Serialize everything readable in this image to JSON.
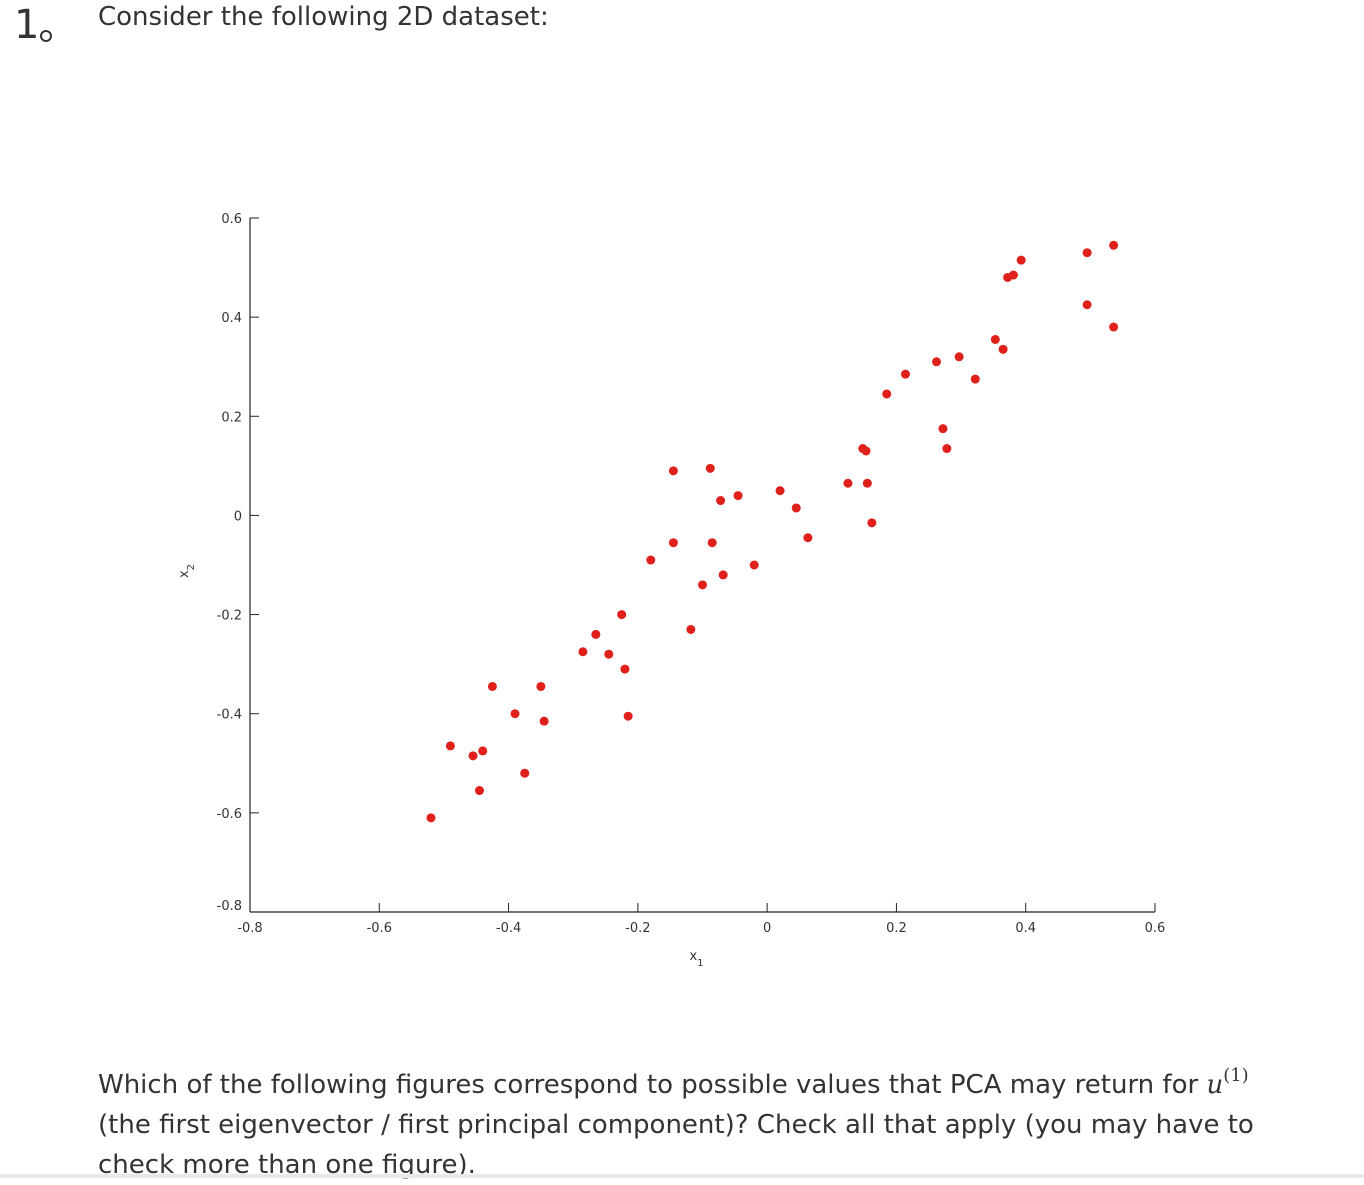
{
  "question": {
    "number": "1",
    "intro": "Consider the following 2D dataset:",
    "prompt_part1": "Which of the following figures correspond to possible values that PCA may return for ",
    "math_var": "u",
    "math_sup": "(1)",
    "prompt_part2": " (the first eigenvector / first principal component)? Check all that apply (you may have to check more than one figure)."
  },
  "chart_data": {
    "type": "scatter",
    "title": "",
    "xlabel": "x1",
    "ylabel": "x2",
    "xlim": [
      -0.8,
      0.6
    ],
    "ylim": [
      -0.8,
      0.6
    ],
    "xticks": [
      -0.8,
      -0.6,
      -0.4,
      -0.2,
      0,
      0.2,
      0.4,
      0.6
    ],
    "yticks": [
      -0.8,
      -0.6,
      -0.4,
      -0.2,
      0,
      0.2,
      0.4,
      0.6
    ],
    "xtick_labels": [
      "-0.8",
      "-0.6",
      "-0.4",
      "-0.2",
      "0",
      "0.2",
      "0.4",
      "0.6"
    ],
    "ytick_labels": [
      "-0.8",
      "-0.6",
      "-0.4",
      "-0.2",
      "0",
      "0.2",
      "0.4",
      "0.6"
    ],
    "grid": false,
    "marker_color": "#e0201b",
    "x": [
      -0.52,
      -0.49,
      -0.455,
      -0.445,
      -0.44,
      -0.425,
      -0.39,
      -0.375,
      -0.35,
      -0.345,
      -0.285,
      -0.265,
      -0.245,
      -0.225,
      -0.22,
      -0.215,
      -0.18,
      -0.145,
      -0.145,
      -0.118,
      -0.1,
      -0.088,
      -0.085,
      -0.072,
      -0.068,
      -0.045,
      -0.02,
      0.02,
      0.045,
      0.063,
      0.125,
      0.148,
      0.153,
      0.155,
      0.162,
      0.185,
      0.214,
      0.262,
      0.272,
      0.278,
      0.297,
      0.322,
      0.353,
      0.365,
      0.372,
      0.381,
      0.393,
      0.495,
      0.495,
      0.536,
      0.536
    ],
    "y": [
      -0.61,
      -0.465,
      -0.485,
      -0.555,
      -0.475,
      -0.345,
      -0.4,
      -0.52,
      -0.345,
      -0.415,
      -0.275,
      -0.24,
      -0.28,
      -0.2,
      -0.31,
      -0.405,
      -0.09,
      0.09,
      -0.055,
      -0.23,
      -0.14,
      0.095,
      -0.055,
      0.03,
      -0.12,
      0.04,
      -0.1,
      0.05,
      0.015,
      -0.045,
      0.065,
      0.135,
      0.13,
      0.065,
      -0.015,
      0.245,
      0.285,
      0.31,
      0.175,
      0.135,
      0.32,
      0.275,
      0.355,
      0.335,
      0.48,
      0.485,
      0.515,
      0.53,
      0.425,
      0.545,
      0.38
    ]
  }
}
